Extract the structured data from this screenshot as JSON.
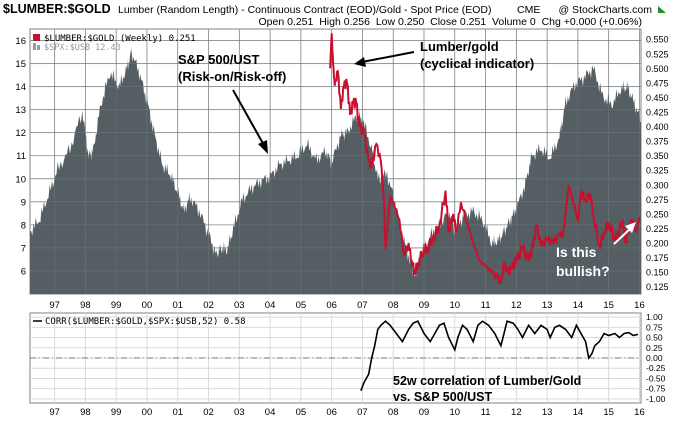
{
  "header": {
    "symbol": "$LUMBER:$GOLD",
    "description": "Lumber (Random Length) - Continuous Contract (EOD)/Gold - Spot Price (EOD)",
    "exchange": "CME",
    "watermark": "@ StockCharts.com",
    "ohlc": "Open 0.251  High 0.256  Low 0.250  Close 0.251  Volume 0  Chg +0.000 (+0.06%)"
  },
  "colors": {
    "area": "#555e63",
    "lumber_line": "#c8102e",
    "corr_line": "#000000",
    "grid": "#d9d9d9",
    "panel_border": "#808080"
  },
  "legend": {
    "lumber": "$LUMBER:$GOLD (Weekly) 0.251",
    "spx": "$SPX:$USB 12.43",
    "corr": "CORR($LUMBER:$GOLD,$SPX:$USB,52) 0.58"
  },
  "annotations": {
    "spx_line1": "S&P 500/UST",
    "spx_line2": "(Risk-on/Risk-off)",
    "lg_line1": "Lumber/gold",
    "lg_line2": "(cyclical indicator)",
    "bull_line1": "Is this",
    "bull_line2": "bullish?",
    "corr_line1": "52w correlation of Lumber/Gold",
    "corr_line2": "vs. S&P 500/UST"
  },
  "chart_data": [
    {
      "type": "area",
      "title": "$SPX:$USB (S&P 500 / Long Bond)",
      "axis": "left",
      "ylim": [
        5,
        16.5
      ],
      "left_ticks": [
        "6",
        "7",
        "8",
        "9",
        "10",
        "11",
        "12",
        "13",
        "14",
        "15",
        "16"
      ],
      "x_ticks": [
        "97",
        "98",
        "99",
        "00",
        "01",
        "02",
        "03",
        "04",
        "05",
        "06",
        "07",
        "08",
        "09",
        "10",
        "11",
        "12",
        "13",
        "14",
        "15",
        "16"
      ],
      "xlim": [
        1996.7,
        2016.55
      ],
      "series": [
        {
          "name": "$SPX:$USB",
          "x": [
            1996.7,
            1997.0,
            1997.3,
            1997.6,
            1998.0,
            1998.4,
            1998.6,
            1998.75,
            1999.0,
            1999.3,
            1999.6,
            1999.85,
            2000.0,
            2000.25,
            2000.5,
            2000.75,
            2001.0,
            2001.25,
            2001.5,
            2001.7,
            2001.9,
            2002.2,
            2002.5,
            2002.75,
            2002.9,
            2003.1,
            2003.3,
            2003.6,
            2003.9,
            2004.2,
            2004.5,
            2004.8,
            2005.1,
            2005.4,
            2005.7,
            2006.0,
            2006.3,
            2006.5,
            2006.8,
            2007.0,
            2007.3,
            2007.5,
            2007.8,
            2008.0,
            2008.3,
            2008.6,
            2008.85,
            2009.1,
            2009.2,
            2009.4,
            2009.7,
            2010.0,
            2010.3,
            2010.5,
            2010.8,
            2011.1,
            2011.4,
            2011.7,
            2011.9,
            2012.1,
            2012.3,
            2012.5,
            2012.8,
            2013.0,
            2013.3,
            2013.6,
            2013.9,
            2014.1,
            2014.4,
            2014.7,
            2015.0,
            2015.3,
            2015.6,
            2015.9,
            2016.1,
            2016.3,
            2016.55
          ],
          "values": [
            7.7,
            8.2,
            9.3,
            10.4,
            11.3,
            12.9,
            11.0,
            11.2,
            13.2,
            14.6,
            14.0,
            14.8,
            15.5,
            14.6,
            13.4,
            11.9,
            10.6,
            10.2,
            9.4,
            8.6,
            9.2,
            8.6,
            7.6,
            6.7,
            7.0,
            6.9,
            7.8,
            9.1,
            9.6,
            9.9,
            10.1,
            10.6,
            10.8,
            11.0,
            11.5,
            10.8,
            11.2,
            10.7,
            11.9,
            12.0,
            12.7,
            12.6,
            11.3,
            10.0,
            10.2,
            8.8,
            7.3,
            6.2,
            5.8,
            6.7,
            7.5,
            8.0,
            8.6,
            7.8,
            8.4,
            8.6,
            8.2,
            7.2,
            7.3,
            7.7,
            8.2,
            8.7,
            9.8,
            11.0,
            11.3,
            10.9,
            11.8,
            13.3,
            14.1,
            14.4,
            14.8,
            13.6,
            13.2,
            13.9,
            14.0,
            13.4,
            12.5
          ]
        }
      ]
    },
    {
      "type": "line",
      "title": "$LUMBER:$GOLD (Weekly)",
      "axis": "right",
      "ylim": [
        0.1125,
        0.5675
      ],
      "right_ticks": [
        "0.125",
        "0.150",
        "0.175",
        "0.200",
        "0.225",
        "0.250",
        "0.275",
        "0.300",
        "0.325",
        "0.350",
        "0.375",
        "0.400",
        "0.425",
        "0.450",
        "0.475",
        "0.500",
        "0.525",
        "0.550"
      ],
      "series": [
        {
          "name": "$LUMBER:$GOLD",
          "x": [
            2006.45,
            2006.5,
            2006.55,
            2006.6,
            2006.7,
            2006.8,
            2006.9,
            2007.0,
            2007.1,
            2007.2,
            2007.3,
            2007.4,
            2007.55,
            2007.7,
            2007.8,
            2007.95,
            2008.1,
            2008.2,
            2008.25,
            2008.4,
            2008.5,
            2008.7,
            2008.85,
            2009.0,
            2009.1,
            2009.2,
            2009.3,
            2009.5,
            2009.6,
            2009.8,
            2010.0,
            2010.2,
            2010.3,
            2010.45,
            2010.55,
            2010.7,
            2010.9,
            2011.1,
            2011.3,
            2011.5,
            2011.7,
            2011.9,
            2012.0,
            2012.1,
            2012.2,
            2012.35,
            2012.5,
            2012.7,
            2012.9,
            2013.05,
            2013.15,
            2013.3,
            2013.5,
            2013.7,
            2013.9,
            2014.0,
            2014.1,
            2014.2,
            2014.3,
            2014.5,
            2014.6,
            2014.75,
            2014.9,
            2015.0,
            2015.2,
            2015.35,
            2015.5,
            2015.7,
            2015.8,
            2015.95,
            2016.05,
            2016.15,
            2016.3,
            2016.4,
            2016.5
          ],
          "values": [
            0.5,
            0.56,
            0.505,
            0.47,
            0.495,
            0.43,
            0.47,
            0.475,
            0.42,
            0.44,
            0.44,
            0.4,
            0.39,
            0.34,
            0.33,
            0.37,
            0.34,
            0.27,
            0.19,
            0.28,
            0.27,
            0.24,
            0.18,
            0.2,
            0.17,
            0.15,
            0.165,
            0.19,
            0.19,
            0.21,
            0.23,
            0.29,
            0.22,
            0.25,
            0.22,
            0.27,
            0.235,
            0.2,
            0.17,
            0.16,
            0.15,
            0.14,
            0.13,
            0.165,
            0.15,
            0.155,
            0.17,
            0.19,
            0.17,
            0.195,
            0.23,
            0.195,
            0.205,
            0.2,
            0.215,
            0.21,
            0.25,
            0.3,
            0.28,
            0.24,
            0.29,
            0.275,
            0.285,
            0.25,
            0.195,
            0.22,
            0.235,
            0.21,
            0.215,
            0.24,
            0.2,
            0.23,
            0.24,
            0.22,
            0.245
          ]
        }
      ]
    },
    {
      "type": "line",
      "title": "CORR($LUMBER:$GOLD,$SPX:$USB,52)",
      "right_ticks": [
        "1.00",
        "0.75",
        "0.50",
        "0.25",
        "0.00",
        "-0.25",
        "-0.50",
        "-0.75",
        "-1.00"
      ],
      "ylim": [
        -1.1,
        1.1
      ],
      "series": [
        {
          "name": "CORR",
          "x": [
            2007.45,
            2007.55,
            2007.7,
            2007.8,
            2007.9,
            2008.0,
            2008.1,
            2008.25,
            2008.4,
            2008.6,
            2008.8,
            2009.0,
            2009.15,
            2009.3,
            2009.5,
            2009.7,
            2009.85,
            2010.0,
            2010.15,
            2010.3,
            2010.5,
            2010.6,
            2010.75,
            2010.9,
            2011.1,
            2011.25,
            2011.4,
            2011.6,
            2011.8,
            2012.0,
            2012.1,
            2012.2,
            2012.4,
            2012.55,
            2012.7,
            2012.9,
            2013.1,
            2013.3,
            2013.5,
            2013.6,
            2013.75,
            2013.9,
            2014.1,
            2014.3,
            2014.45,
            2014.6,
            2014.75,
            2014.85,
            2014.95,
            2015.05,
            2015.2,
            2015.35,
            2015.5,
            2015.7,
            2015.85,
            2016.0,
            2016.15,
            2016.3,
            2016.45
          ],
          "values": [
            -0.8,
            -0.6,
            -0.4,
            0.0,
            0.3,
            0.7,
            0.8,
            0.9,
            0.8,
            0.6,
            0.4,
            0.7,
            0.85,
            0.9,
            0.6,
            0.4,
            0.6,
            0.8,
            0.85,
            0.5,
            0.2,
            0.5,
            0.8,
            0.7,
            0.4,
            0.8,
            0.9,
            0.8,
            0.6,
            0.3,
            0.6,
            0.9,
            0.85,
            0.7,
            0.5,
            0.8,
            0.6,
            0.8,
            0.7,
            0.5,
            0.75,
            0.8,
            0.7,
            0.5,
            0.8,
            0.6,
            0.4,
            0.0,
            0.1,
            0.3,
            0.4,
            0.6,
            0.55,
            0.6,
            0.5,
            0.6,
            0.62,
            0.55,
            0.58
          ]
        }
      ]
    }
  ]
}
